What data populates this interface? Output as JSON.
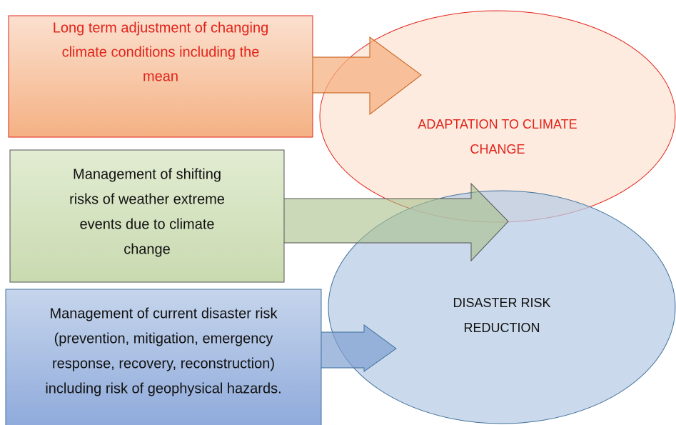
{
  "boxes": [
    {
      "lines": [
        "Long term adjustment of changing",
        "climate conditions including the",
        "mean"
      ]
    },
    {
      "lines": [
        "Management of shifting",
        "risks of weather extreme",
        "events due to climate",
        "change"
      ]
    },
    {
      "lines": [
        "Management of current disaster risk",
        "(prevention, mitigation, emergency",
        "response, recovery, reconstruction)",
        "including risk of geophysical hazards."
      ]
    }
  ],
  "circles": [
    {
      "lines": [
        "ADAPTATION TO CLIMATE",
        "CHANGE"
      ]
    },
    {
      "lines": [
        "DISASTER RISK",
        "REDUCTION"
      ]
    }
  ]
}
